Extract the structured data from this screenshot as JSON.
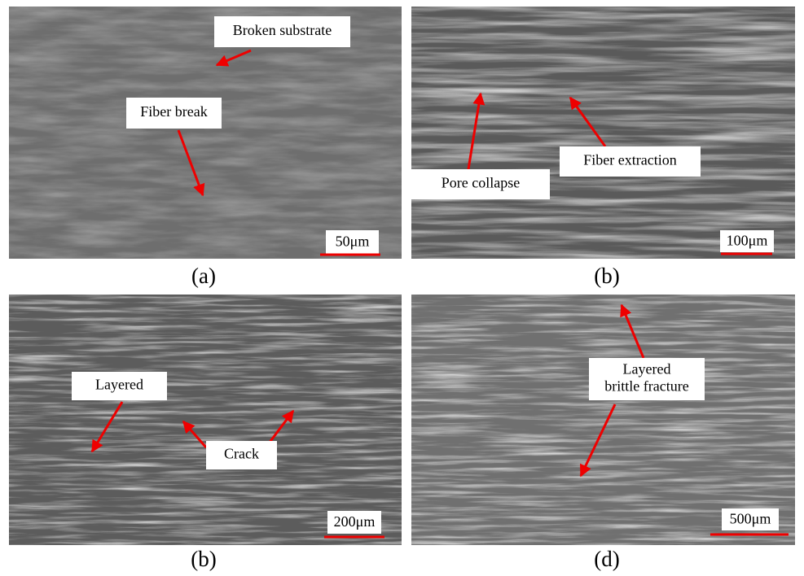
{
  "panels": [
    {
      "caption": "(a)",
      "scale_bar": "50μm",
      "annotations": [
        {
          "lines": [
            "Broken substrate"
          ]
        },
        {
          "lines": [
            "Fiber break"
          ]
        }
      ]
    },
    {
      "caption": "(b)",
      "scale_bar": "100μm",
      "annotations": [
        {
          "lines": [
            "Pore collapse"
          ]
        },
        {
          "lines": [
            "Fiber extraction"
          ]
        }
      ]
    },
    {
      "caption": "(b)",
      "scale_bar": "200μm",
      "annotations": [
        {
          "lines": [
            "Layered"
          ]
        },
        {
          "lines": [
            "Crack"
          ]
        }
      ]
    },
    {
      "caption": "(d)",
      "scale_bar": "500μm",
      "annotations": [
        {
          "lines": [
            "Layered",
            "brittle fracture"
          ]
        }
      ]
    }
  ]
}
